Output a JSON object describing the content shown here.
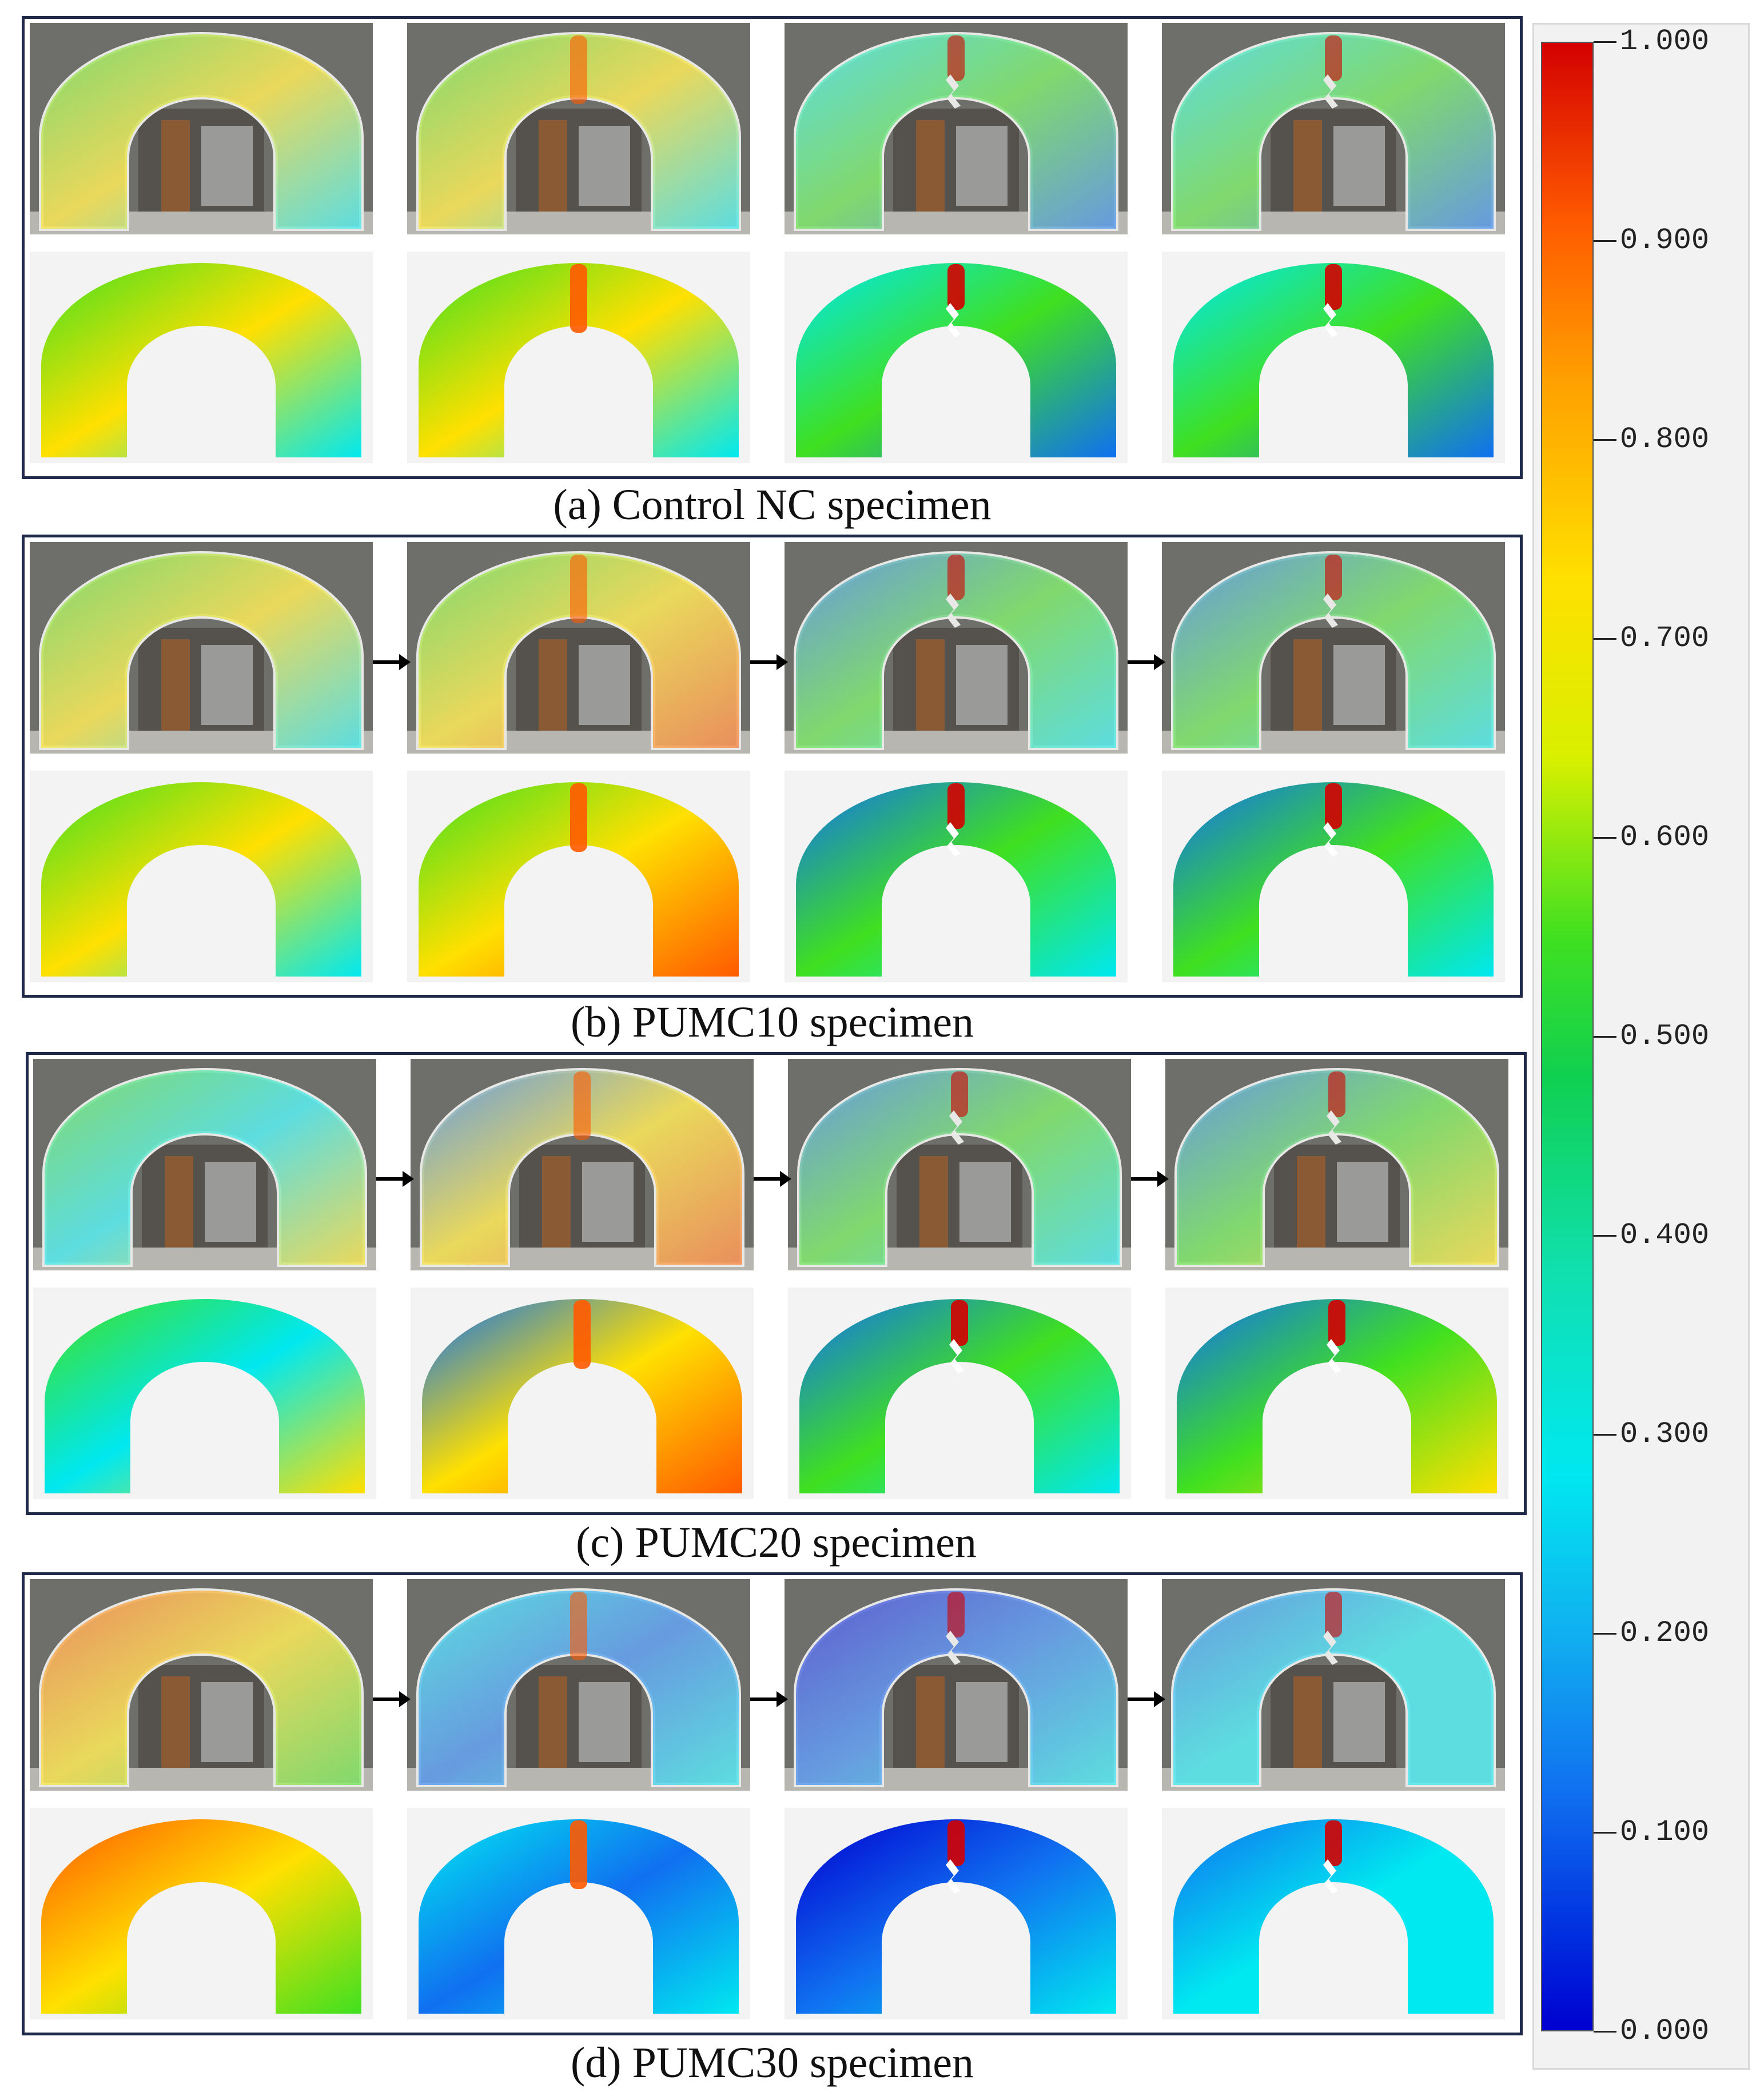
{
  "figure": {
    "panels": [
      {
        "caption": "(a) Control NC specimen"
      },
      {
        "caption": "(b) PUMC10 specimen"
      },
      {
        "caption": "(c) PUMC20 specimen"
      },
      {
        "caption": "(d) PUMC30 specimen"
      }
    ],
    "colorbar": {
      "ticks": [
        "1.000",
        "0.900",
        "0.800",
        "0.700",
        "0.600",
        "0.500",
        "0.400",
        "0.300",
        "0.200",
        "0.100",
        "0.000"
      ],
      "colors": [
        "#d40000",
        "#ff5a00",
        "#ffa000",
        "#ffe000",
        "#40e020",
        "#10e0b0",
        "#00e8f0",
        "#1070f0",
        "#0000d0"
      ]
    }
  }
}
